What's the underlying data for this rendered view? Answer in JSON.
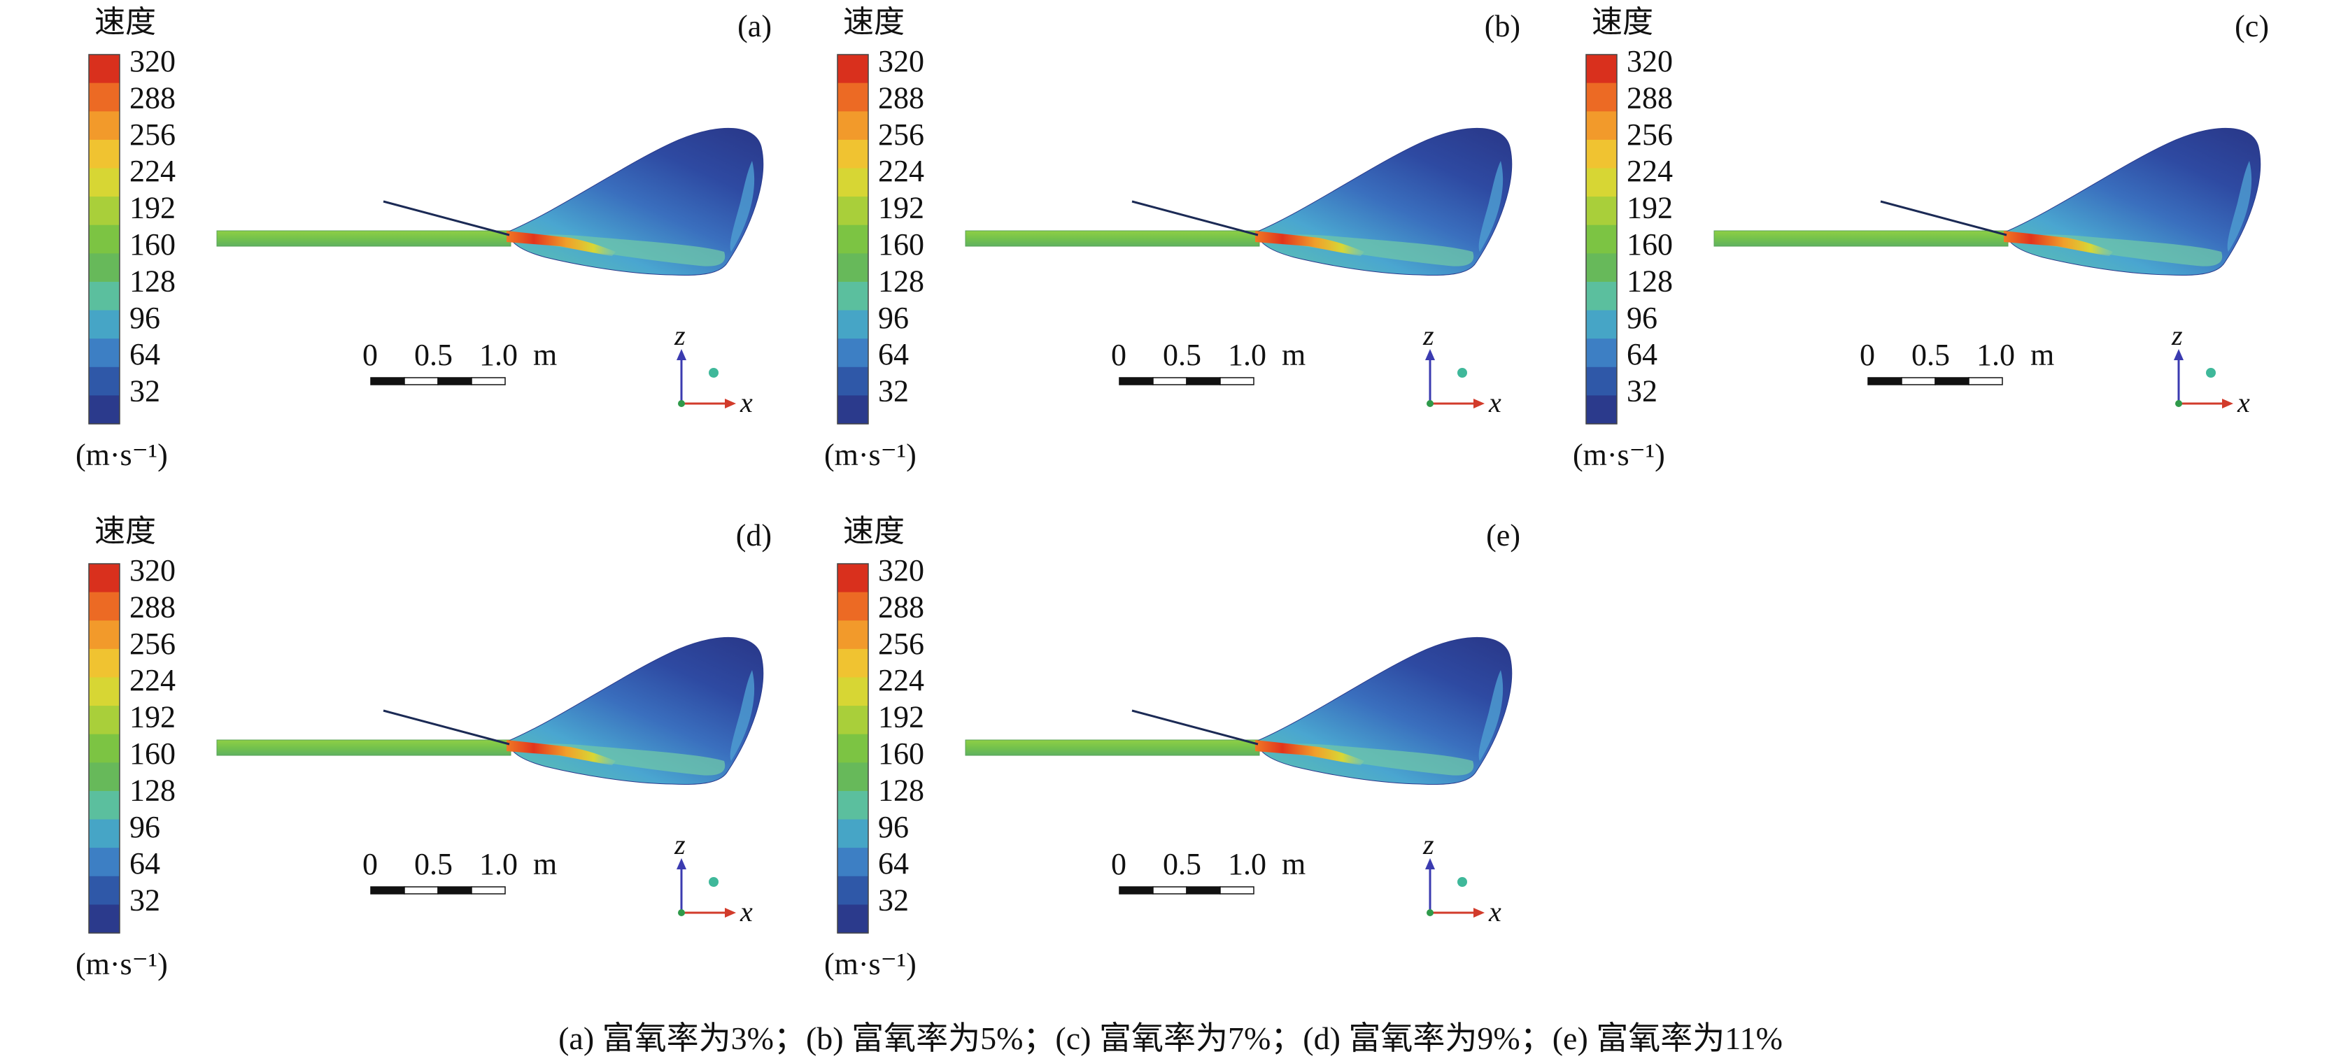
{
  "legend": {
    "title": "速度",
    "unit": "(m·s⁻¹)",
    "ticks": [
      "320",
      "288",
      "256",
      "224",
      "192",
      "160",
      "128",
      "96",
      "64",
      "32"
    ],
    "colors": [
      "#2b3a8c",
      "#2f58a8",
      "#3d7fc4",
      "#46a5c6",
      "#5bbf9e",
      "#67b95a",
      "#7cc443",
      "#a9cf3a",
      "#d7d634",
      "#f0c331",
      "#f29a2b",
      "#ec6a24",
      "#d9301d"
    ]
  },
  "scale_bar": {
    "labels": [
      "0",
      "0.5",
      "1.0"
    ],
    "unit": "m"
  },
  "axes": {
    "vertical": "z",
    "horizontal": "x"
  },
  "panels": [
    {
      "id": "a",
      "label": "(a)"
    },
    {
      "id": "b",
      "label": "(b)"
    },
    {
      "id": "c",
      "label": "(c)"
    },
    {
      "id": "d",
      "label": "(d)"
    },
    {
      "id": "e",
      "label": "(e)"
    }
  ],
  "caption": "(a) 富氧率为3%；(b) 富氧率为5%；(c) 富氧率为7%；(d) 富氧率为9%；(e) 富氧率为11%"
}
